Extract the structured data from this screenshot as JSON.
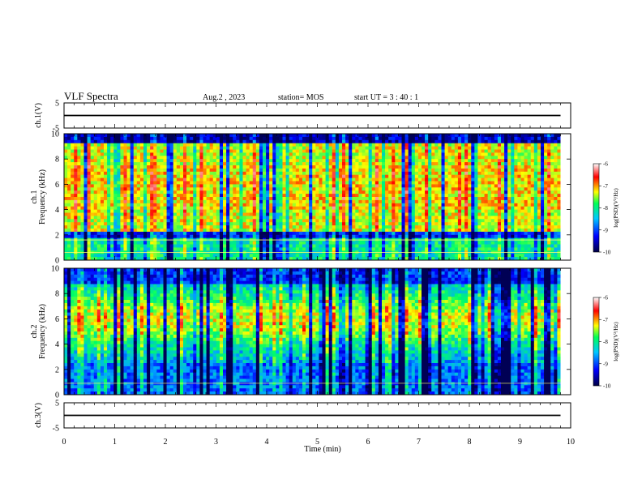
{
  "header": {
    "title": "VLF Spectra",
    "date": "Aug.2 , 2023",
    "station": "station= MOS",
    "start": "start UT = 3 : 40 : 1"
  },
  "chart_data": [
    {
      "type": "line",
      "name": "ch1-voltage",
      "ylabel": "ch.1(V)",
      "ylim": [
        -5,
        5
      ],
      "yticks": [
        "5",
        "-5"
      ],
      "x": [
        0,
        9.8
      ],
      "values": [
        0.0,
        0.0
      ]
    },
    {
      "type": "heatmap",
      "name": "ch1-spectrogram",
      "ylabel": "ch.1\nFrequency (kHz)",
      "ylabel_lines": [
        "ch.1",
        "Frequency (kHz)"
      ],
      "ylim": [
        0,
        10
      ],
      "yticks": [
        "0",
        "2",
        "4",
        "6",
        "8",
        "10"
      ],
      "xlim": [
        0,
        9.8
      ],
      "colorbar": {
        "label": "log(PSD)(V²/Hz)",
        "range": [
          -10,
          -6
        ],
        "ticks": [
          "-6",
          "-7",
          "-8",
          "-9",
          "-10"
        ]
      }
    },
    {
      "type": "heatmap",
      "name": "ch2-spectrogram",
      "ylabel": "ch.2\nFrequency (kHz)",
      "ylabel_lines": [
        "ch.2",
        "Frequency (kHz)"
      ],
      "ylim": [
        0,
        10
      ],
      "yticks": [
        "0",
        "2",
        "4",
        "6",
        "8",
        "10"
      ],
      "xlim": [
        0,
        9.8
      ],
      "colorbar": {
        "label": "log(PSD)(V²/Hz)",
        "range": [
          -10,
          -6
        ],
        "ticks": [
          "-6",
          "-7",
          "-8",
          "-9",
          "-10"
        ]
      }
    },
    {
      "type": "line",
      "name": "ch3-voltage",
      "ylabel": "ch.3(V)",
      "ylim": [
        -5,
        5
      ],
      "yticks": [
        "5",
        "-5"
      ],
      "x": [
        0,
        9.8
      ],
      "values": [
        0.0,
        0.0
      ]
    }
  ],
  "xaxis": {
    "label": "Time (min)",
    "xlim": [
      0,
      10
    ],
    "ticks": [
      "0",
      "1",
      "2",
      "3",
      "4",
      "5",
      "6",
      "7",
      "8",
      "9",
      "10"
    ]
  },
  "colormap": [
    "#000055",
    "#0000ff",
    "#00aaff",
    "#00ff66",
    "#ffff00",
    "#ff0000",
    "#ffffff"
  ]
}
